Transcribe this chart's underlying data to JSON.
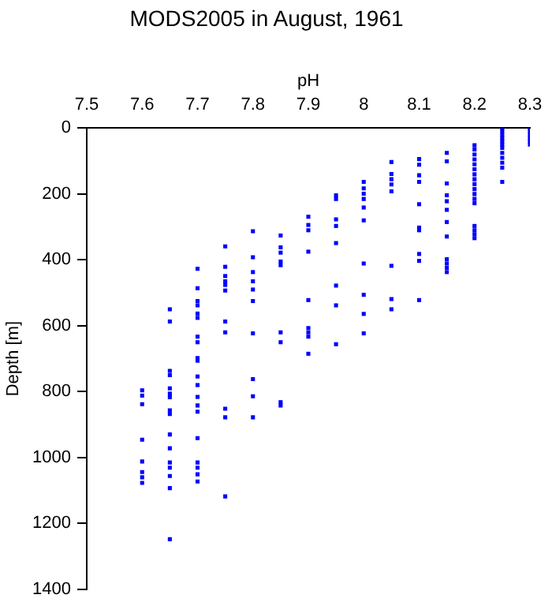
{
  "chart_data": {
    "type": "scatter",
    "title": "MODS2005 in August, 1961",
    "xlabel": "pH",
    "ylabel": "Depth [m]",
    "xlim": [
      7.5,
      8.3
    ],
    "xticks": [
      7.5,
      7.6,
      7.7,
      7.8,
      7.9,
      8,
      8.1,
      8.2,
      8.3
    ],
    "ylim": [
      1400,
      0
    ],
    "yticks": [
      0,
      200,
      400,
      600,
      800,
      1000,
      1200,
      1400
    ],
    "grid": false,
    "legend": false,
    "marker": "square",
    "series": [
      {
        "color": "#0000ff",
        "x": [
          7.6,
          7.6,
          7.6,
          7.6,
          7.6,
          7.6,
          7.6,
          7.6,
          7.65,
          7.65,
          7.65,
          7.65,
          7.65,
          7.65,
          7.65,
          7.65,
          7.65,
          7.65,
          7.65,
          7.65,
          7.65,
          7.65,
          7.65,
          7.65,
          7.7,
          7.7,
          7.7,
          7.7,
          7.7,
          7.7,
          7.7,
          7.7,
          7.7,
          7.7,
          7.7,
          7.7,
          7.7,
          7.7,
          7.7,
          7.7,
          7.7,
          7.7,
          7.7,
          7.7,
          7.75,
          7.75,
          7.75,
          7.75,
          7.75,
          7.75,
          7.75,
          7.75,
          7.75,
          7.75,
          7.75,
          7.8,
          7.8,
          7.8,
          7.8,
          7.8,
          7.8,
          7.8,
          7.8,
          7.8,
          7.8,
          7.85,
          7.85,
          7.85,
          7.85,
          7.85,
          7.85,
          7.85,
          7.85,
          7.85,
          7.9,
          7.9,
          7.9,
          7.9,
          7.9,
          7.9,
          7.9,
          7.9,
          7.9,
          7.95,
          7.95,
          7.95,
          7.95,
          7.95,
          7.95,
          7.95,
          7.95,
          8,
          8,
          8,
          8,
          8,
          8,
          8,
          8,
          8,
          8,
          8.05,
          8.05,
          8.05,
          8.05,
          8.05,
          8.05,
          8.05,
          8.05,
          8.1,
          8.1,
          8.1,
          8.1,
          8.1,
          8.1,
          8.1,
          8.1,
          8.1,
          8.1,
          8.15,
          8.15,
          8.15,
          8.15,
          8.15,
          8.15,
          8.15,
          8.15,
          8.15,
          8.15,
          8.15,
          8.15,
          8.2,
          8.2,
          8.2,
          8.2,
          8.2,
          8.2,
          8.2,
          8.2,
          8.2,
          8.2,
          8.2,
          8.2,
          8.2,
          8.2,
          8.2,
          8.2,
          8.2,
          8.25,
          8.25,
          8.25,
          8.25,
          8.25,
          8.25,
          8.25,
          8.25,
          8.25,
          8.25,
          8.25,
          8.25,
          8.3,
          8.3,
          8.3,
          8.3,
          8.3,
          8.3
        ],
        "values": [
          796,
          812,
          838,
          946,
          1012,
          1044,
          1060,
          1077,
          550,
          587,
          737,
          750,
          790,
          806,
          817,
          857,
          868,
          930,
          972,
          1015,
          1031,
          1056,
          1093,
          1248,
          427,
          486,
          525,
          538,
          563,
          576,
          633,
          650,
          698,
          706,
          754,
          780,
          816,
          842,
          861,
          941,
          1015,
          1031,
          1051,
          1073,
          359,
          421,
          449,
          465,
          476,
          493,
          587,
          620,
          852,
          878,
          1118,
          313,
          392,
          437,
          465,
          490,
          525,
          623,
          762,
          814,
          878,
          326,
          362,
          378,
          405,
          416,
          620,
          650,
          832,
          842,
          269,
          294,
          310,
          375,
          522,
          607,
          620,
          633,
          685,
          204,
          215,
          277,
          297,
          349,
          478,
          538,
          656,
          163,
          183,
          199,
          215,
          241,
          280,
          411,
          506,
          564,
          623,
          103,
          139,
          155,
          171,
          192,
          418,
          519,
          550,
          94,
          111,
          143,
          163,
          231,
          302,
          310,
          382,
          403,
          522,
          75,
          101,
          168,
          204,
          222,
          248,
          285,
          329,
          398,
          411,
          424,
          437,
          52,
          65,
          80,
          95,
          110,
          125,
          140,
          155,
          170,
          185,
          200,
          215,
          228,
          297,
          310,
          322,
          334,
          0,
          10,
          20,
          30,
          40,
          50,
          60,
          75,
          90,
          105,
          120,
          163,
          0,
          10,
          20,
          30,
          40,
          50
        ]
      }
    ]
  }
}
